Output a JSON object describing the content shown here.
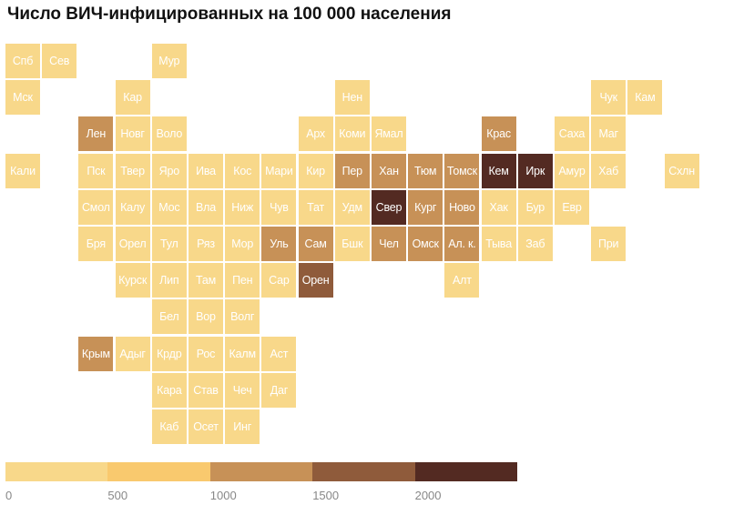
{
  "title": "Число ВИЧ-инфицированных на 100 000 населения",
  "chart_data": {
    "type": "heatmap",
    "title": "Число ВИЧ-инфицированных на 100 000 населения",
    "legend": {
      "ticks": [
        "0",
        "500",
        "1000",
        "1500",
        "2000"
      ],
      "bins": [
        {
          "from": 0,
          "to": 500,
          "color": "#f8d88a"
        },
        {
          "from": 500,
          "to": 1000,
          "color": "#f9c96e"
        },
        {
          "from": 1000,
          "to": 1500,
          "color": "#c79157"
        },
        {
          "from": 1500,
          "to": 2000,
          "color": "#8f5b3b"
        },
        {
          "from": 2000,
          "to": 2500,
          "color": "#532a22"
        }
      ]
    },
    "cells": [
      {
        "label": "Спб",
        "row": 0,
        "col": 0,
        "bin": 0
      },
      {
        "label": "Сев",
        "row": 0,
        "col": 1,
        "bin": 0
      },
      {
        "label": "Мур",
        "row": 0,
        "col": 4,
        "bin": 0
      },
      {
        "label": "Мск",
        "row": 1,
        "col": 0,
        "bin": 0
      },
      {
        "label": "Кар",
        "row": 1,
        "col": 3,
        "bin": 0
      },
      {
        "label": "Нен",
        "row": 1,
        "col": 9,
        "bin": 0
      },
      {
        "label": "Чук",
        "row": 1,
        "col": 16,
        "bin": 0
      },
      {
        "label": "Кам",
        "row": 1,
        "col": 17,
        "bin": 0
      },
      {
        "label": "Лен",
        "row": 2,
        "col": 2,
        "bin": 2
      },
      {
        "label": "Новг",
        "row": 2,
        "col": 3,
        "bin": 0
      },
      {
        "label": "Воло",
        "row": 2,
        "col": 4,
        "bin": 0
      },
      {
        "label": "Арх",
        "row": 2,
        "col": 8,
        "bin": 0
      },
      {
        "label": "Коми",
        "row": 2,
        "col": 9,
        "bin": 0
      },
      {
        "label": "Ямал",
        "row": 2,
        "col": 10,
        "bin": 0
      },
      {
        "label": "Крас",
        "row": 2,
        "col": 13,
        "bin": 2
      },
      {
        "label": "Саха",
        "row": 2,
        "col": 15,
        "bin": 0
      },
      {
        "label": "Маг",
        "row": 2,
        "col": 16,
        "bin": 0
      },
      {
        "label": "Кали",
        "row": 3,
        "col": 0,
        "bin": 0
      },
      {
        "label": "Пск",
        "row": 3,
        "col": 2,
        "bin": 0
      },
      {
        "label": "Твер",
        "row": 3,
        "col": 3,
        "bin": 0
      },
      {
        "label": "Яро",
        "row": 3,
        "col": 4,
        "bin": 0
      },
      {
        "label": "Ива",
        "row": 3,
        "col": 5,
        "bin": 0
      },
      {
        "label": "Кос",
        "row": 3,
        "col": 6,
        "bin": 0
      },
      {
        "label": "Мари",
        "row": 3,
        "col": 7,
        "bin": 0
      },
      {
        "label": "Кир",
        "row": 3,
        "col": 8,
        "bin": 0
      },
      {
        "label": "Пер",
        "row": 3,
        "col": 9,
        "bin": 2
      },
      {
        "label": "Хан",
        "row": 3,
        "col": 10,
        "bin": 2
      },
      {
        "label": "Тюм",
        "row": 3,
        "col": 11,
        "bin": 2
      },
      {
        "label": "Томск",
        "row": 3,
        "col": 12,
        "bin": 2
      },
      {
        "label": "Кем",
        "row": 3,
        "col": 13,
        "bin": 4
      },
      {
        "label": "Ирк",
        "row": 3,
        "col": 14,
        "bin": 4
      },
      {
        "label": "Амур",
        "row": 3,
        "col": 15,
        "bin": 0
      },
      {
        "label": "Хаб",
        "row": 3,
        "col": 16,
        "bin": 0
      },
      {
        "label": "Схлн",
        "row": 3,
        "col": 18,
        "bin": 0
      },
      {
        "label": "Смол",
        "row": 4,
        "col": 2,
        "bin": 0
      },
      {
        "label": "Калу",
        "row": 4,
        "col": 3,
        "bin": 0
      },
      {
        "label": "Мос",
        "row": 4,
        "col": 4,
        "bin": 0
      },
      {
        "label": "Вла",
        "row": 4,
        "col": 5,
        "bin": 0
      },
      {
        "label": "Ниж",
        "row": 4,
        "col": 6,
        "bin": 0
      },
      {
        "label": "Чув",
        "row": 4,
        "col": 7,
        "bin": 0
      },
      {
        "label": "Тат",
        "row": 4,
        "col": 8,
        "bin": 0
      },
      {
        "label": "Удм",
        "row": 4,
        "col": 9,
        "bin": 0
      },
      {
        "label": "Свер",
        "row": 4,
        "col": 10,
        "bin": 4
      },
      {
        "label": "Кург",
        "row": 4,
        "col": 11,
        "bin": 2
      },
      {
        "label": "Ново",
        "row": 4,
        "col": 12,
        "bin": 2
      },
      {
        "label": "Хак",
        "row": 4,
        "col": 13,
        "bin": 0
      },
      {
        "label": "Бур",
        "row": 4,
        "col": 14,
        "bin": 0
      },
      {
        "label": "Евр",
        "row": 4,
        "col": 15,
        "bin": 0
      },
      {
        "label": "Бря",
        "row": 5,
        "col": 2,
        "bin": 0
      },
      {
        "label": "Орел",
        "row": 5,
        "col": 3,
        "bin": 0
      },
      {
        "label": "Тул",
        "row": 5,
        "col": 4,
        "bin": 0
      },
      {
        "label": "Ряз",
        "row": 5,
        "col": 5,
        "bin": 0
      },
      {
        "label": "Мор",
        "row": 5,
        "col": 6,
        "bin": 0
      },
      {
        "label": "Уль",
        "row": 5,
        "col": 7,
        "bin": 2
      },
      {
        "label": "Сам",
        "row": 5,
        "col": 8,
        "bin": 2
      },
      {
        "label": "Бшк",
        "row": 5,
        "col": 9,
        "bin": 0
      },
      {
        "label": "Чел",
        "row": 5,
        "col": 10,
        "bin": 2
      },
      {
        "label": "Омск",
        "row": 5,
        "col": 11,
        "bin": 2
      },
      {
        "label": "Ал. к.",
        "row": 5,
        "col": 12,
        "bin": 2
      },
      {
        "label": "Тыва",
        "row": 5,
        "col": 13,
        "bin": 0
      },
      {
        "label": "Заб",
        "row": 5,
        "col": 14,
        "bin": 0
      },
      {
        "label": "При",
        "row": 5,
        "col": 16,
        "bin": 0
      },
      {
        "label": "Курск",
        "row": 6,
        "col": 3,
        "bin": 0
      },
      {
        "label": "Лип",
        "row": 6,
        "col": 4,
        "bin": 0
      },
      {
        "label": "Там",
        "row": 6,
        "col": 5,
        "bin": 0
      },
      {
        "label": "Пен",
        "row": 6,
        "col": 6,
        "bin": 0
      },
      {
        "label": "Сар",
        "row": 6,
        "col": 7,
        "bin": 0
      },
      {
        "label": "Орен",
        "row": 6,
        "col": 8,
        "bin": 3
      },
      {
        "label": "Алт",
        "row": 6,
        "col": 12,
        "bin": 0
      },
      {
        "label": "Бел",
        "row": 7,
        "col": 4,
        "bin": 0
      },
      {
        "label": "Вор",
        "row": 7,
        "col": 5,
        "bin": 0
      },
      {
        "label": "Волг",
        "row": 7,
        "col": 6,
        "bin": 0
      },
      {
        "label": "Крым",
        "row": 8,
        "col": 2,
        "bin": 2
      },
      {
        "label": "Адыг",
        "row": 8,
        "col": 3,
        "bin": 0
      },
      {
        "label": "Крдр",
        "row": 8,
        "col": 4,
        "bin": 0
      },
      {
        "label": "Рос",
        "row": 8,
        "col": 5,
        "bin": 0
      },
      {
        "label": "Калм",
        "row": 8,
        "col": 6,
        "bin": 0
      },
      {
        "label": "Аст",
        "row": 8,
        "col": 7,
        "bin": 0
      },
      {
        "label": "Кара",
        "row": 9,
        "col": 4,
        "bin": 0
      },
      {
        "label": "Став",
        "row": 9,
        "col": 5,
        "bin": 0
      },
      {
        "label": "Чеч",
        "row": 9,
        "col": 6,
        "bin": 0
      },
      {
        "label": "Даг",
        "row": 9,
        "col": 7,
        "bin": 0
      },
      {
        "label": "Каб",
        "row": 10,
        "col": 4,
        "bin": 0
      },
      {
        "label": "Осет",
        "row": 10,
        "col": 5,
        "bin": 0
      },
      {
        "label": "Инг",
        "row": 10,
        "col": 6,
        "bin": 0
      }
    ]
  }
}
